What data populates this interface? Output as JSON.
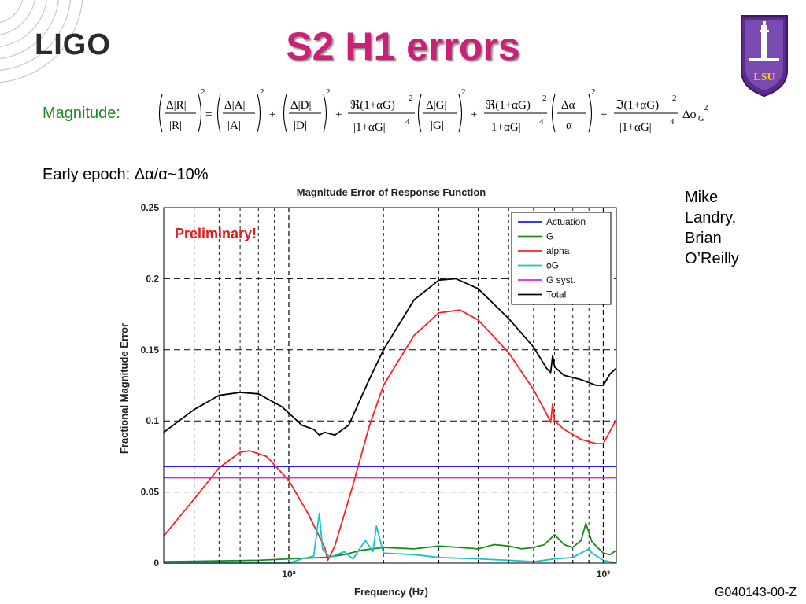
{
  "slide": {
    "title": "S2 H1 errors",
    "logo_left": "LIGO",
    "logo_right": "LSU",
    "magnitude_label": "Magnitude:",
    "early_epoch_prefix": "Early epoch: ",
    "early_epoch_symbol": "Δα/α",
    "early_epoch_value": "~10%",
    "authors": [
      "Mike",
      "Landry,",
      "Brian",
      "O’Reilly"
    ],
    "doc_id": "G040143-00-Z"
  },
  "colors": {
    "title": "#cc1f77",
    "magnitude_label": "#1f8a1f",
    "preliminary": "#e01a1a",
    "Actuation": "#1a1aff",
    "G": "#1a8a1a",
    "alpha": "#ff2020",
    "phi_G": "#17c4c4",
    "G_syst": "#e020e0",
    "Total": "#000000"
  },
  "chart_data": {
    "type": "line",
    "title": "Magnitude Error of Response Function",
    "xlabel": "Frequency (Hz)",
    "ylabel": "Fractional Magnitude Error",
    "xscale": "log",
    "xlim": [
      40,
      1100
    ],
    "ylim": [
      0,
      0.25
    ],
    "yticks": [
      "0",
      "0.05",
      "0.1",
      "0.15",
      "0.2",
      "0.25"
    ],
    "xticks": [
      {
        "value": 100,
        "label": "10²"
      },
      {
        "value": 1000,
        "label": "10³"
      }
    ],
    "grid": true,
    "legend_position": "top-right",
    "annotation": "Preliminary!",
    "series": [
      {
        "name": "Actuation",
        "key": "Actuation",
        "points": [
          [
            40,
            0.068
          ],
          [
            1100,
            0.068
          ]
        ]
      },
      {
        "name": "G",
        "key": "G",
        "points": [
          [
            40,
            0.001
          ],
          [
            80,
            0.002
          ],
          [
            100,
            0.003
          ],
          [
            130,
            0.004
          ],
          [
            150,
            0.006
          ],
          [
            170,
            0.009
          ],
          [
            200,
            0.011
          ],
          [
            250,
            0.01
          ],
          [
            300,
            0.012
          ],
          [
            350,
            0.011
          ],
          [
            400,
            0.01
          ],
          [
            450,
            0.013
          ],
          [
            500,
            0.012
          ],
          [
            550,
            0.01
          ],
          [
            600,
            0.011
          ],
          [
            650,
            0.013
          ],
          [
            700,
            0.02
          ],
          [
            750,
            0.013
          ],
          [
            800,
            0.011
          ],
          [
            850,
            0.016
          ],
          [
            880,
            0.028
          ],
          [
            920,
            0.015
          ],
          [
            1000,
            0.007
          ],
          [
            1050,
            0.006
          ],
          [
            1100,
            0.009
          ]
        ]
      },
      {
        "name": "alpha",
        "key": "alpha",
        "points": [
          [
            40,
            0.019
          ],
          [
            50,
            0.045
          ],
          [
            60,
            0.067
          ],
          [
            70,
            0.078
          ],
          [
            75,
            0.079
          ],
          [
            85,
            0.075
          ],
          [
            100,
            0.058
          ],
          [
            115,
            0.035
          ],
          [
            130,
            0.011
          ],
          [
            133,
            0.002
          ],
          [
            140,
            0.012
          ],
          [
            160,
            0.055
          ],
          [
            180,
            0.096
          ],
          [
            200,
            0.125
          ],
          [
            250,
            0.16
          ],
          [
            300,
            0.176
          ],
          [
            350,
            0.178
          ],
          [
            400,
            0.171
          ],
          [
            500,
            0.148
          ],
          [
            600,
            0.122
          ],
          [
            660,
            0.105
          ],
          [
            680,
            0.099
          ],
          [
            690,
            0.112
          ],
          [
            700,
            0.1
          ],
          [
            750,
            0.094
          ],
          [
            850,
            0.087
          ],
          [
            950,
            0.084
          ],
          [
            1000,
            0.084
          ],
          [
            1100,
            0.101
          ]
        ]
      },
      {
        "name": "ϕG",
        "key": "phi_G",
        "points": [
          [
            40,
            0.0
          ],
          [
            100,
            0.0
          ],
          [
            110,
            0.003
          ],
          [
            120,
            0.005
          ],
          [
            125,
            0.035
          ],
          [
            128,
            0.01
          ],
          [
            135,
            0.004
          ],
          [
            150,
            0.008
          ],
          [
            160,
            0.003
          ],
          [
            175,
            0.016
          ],
          [
            185,
            0.008
          ],
          [
            190,
            0.026
          ],
          [
            200,
            0.007
          ],
          [
            250,
            0.006
          ],
          [
            300,
            0.004
          ],
          [
            400,
            0.003
          ],
          [
            500,
            0.002
          ],
          [
            600,
            0.001
          ],
          [
            700,
            0.003
          ],
          [
            800,
            0.004
          ],
          [
            900,
            0.01
          ],
          [
            920,
            0.007
          ],
          [
            1000,
            0.002
          ],
          [
            1100,
            0.0
          ]
        ]
      },
      {
        "name": "G syst.",
        "key": "G_syst",
        "points": [
          [
            40,
            0.06
          ],
          [
            1100,
            0.06
          ]
        ]
      },
      {
        "name": "Total",
        "key": "Total",
        "points": [
          [
            40,
            0.092
          ],
          [
            50,
            0.108
          ],
          [
            60,
            0.118
          ],
          [
            70,
            0.12
          ],
          [
            80,
            0.119
          ],
          [
            95,
            0.11
          ],
          [
            110,
            0.097
          ],
          [
            120,
            0.094
          ],
          [
            125,
            0.09
          ],
          [
            130,
            0.092
          ],
          [
            140,
            0.09
          ],
          [
            155,
            0.097
          ],
          [
            180,
            0.129
          ],
          [
            200,
            0.15
          ],
          [
            250,
            0.185
          ],
          [
            300,
            0.199
          ],
          [
            340,
            0.2
          ],
          [
            400,
            0.193
          ],
          [
            500,
            0.172
          ],
          [
            600,
            0.152
          ],
          [
            660,
            0.137
          ],
          [
            680,
            0.134
          ],
          [
            690,
            0.146
          ],
          [
            700,
            0.138
          ],
          [
            750,
            0.132
          ],
          [
            850,
            0.129
          ],
          [
            950,
            0.125
          ],
          [
            1000,
            0.125
          ],
          [
            1050,
            0.133
          ],
          [
            1100,
            0.137
          ]
        ]
      }
    ]
  }
}
